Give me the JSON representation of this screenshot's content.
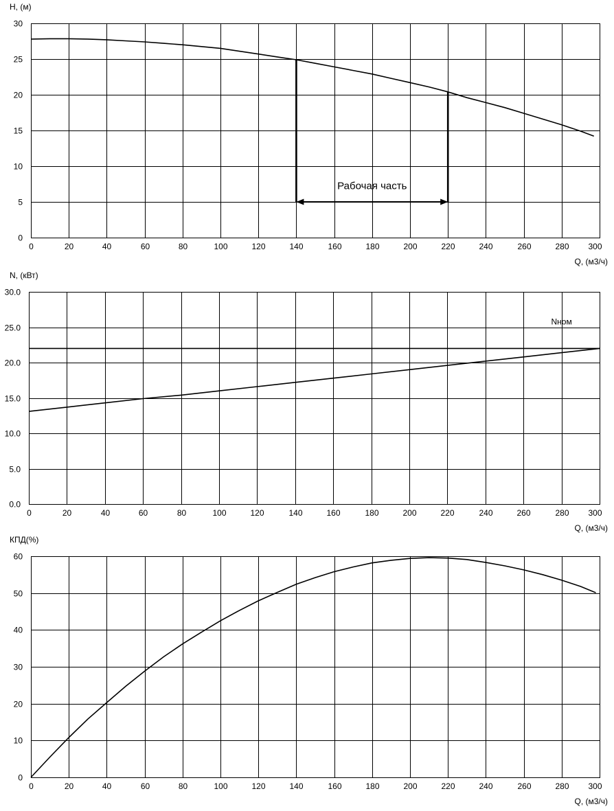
{
  "chart_data": [
    {
      "id": "h",
      "type": "line",
      "ylabel": "H, (м)",
      "xlabel": "Q, (м3/ч)",
      "xlim": [
        0,
        300
      ],
      "ylim": [
        0,
        30
      ],
      "xticks": [
        "0",
        "20",
        "40",
        "60",
        "80",
        "100",
        "120",
        "140",
        "160",
        "180",
        "200",
        "220",
        "240",
        "260",
        "280",
        "300"
      ],
      "yticks": [
        "0",
        "5",
        "10",
        "15",
        "20",
        "25",
        "30"
      ],
      "grid": true,
      "series": [
        {
          "x": [
            0,
            10,
            20,
            30,
            40,
            50,
            60,
            70,
            80,
            90,
            100,
            110,
            120,
            130,
            140,
            150,
            160,
            170,
            180,
            190,
            200,
            210,
            220,
            230,
            240,
            250,
            260,
            270,
            280,
            290,
            297
          ],
          "values": [
            27.8,
            27.85,
            27.85,
            27.8,
            27.7,
            27.55,
            27.4,
            27.2,
            27.0,
            26.75,
            26.5,
            26.1,
            25.7,
            25.3,
            24.9,
            24.4,
            23.9,
            23.4,
            22.9,
            22.3,
            21.7,
            21.1,
            20.4,
            19.6,
            18.9,
            18.2,
            17.4,
            16.6,
            15.8,
            14.9,
            14.2
          ]
        }
      ],
      "annotations": [
        {
          "type": "vline",
          "x": 140,
          "y_from": 5,
          "y_to": 24.9
        },
        {
          "type": "vline",
          "x": 220,
          "y_from": 5,
          "y_to": 20.4
        },
        {
          "type": "double-arrow",
          "x_from": 140,
          "x_to": 220,
          "y": 5
        },
        {
          "type": "text",
          "text": "Рабочая часть",
          "x": 180,
          "y": 6.8
        }
      ]
    },
    {
      "id": "n",
      "type": "line",
      "ylabel": "N, (кВт)",
      "xlabel": "Q, (м3/ч)",
      "xlim": [
        0,
        300
      ],
      "ylim": [
        0,
        30
      ],
      "xticks": [
        "0",
        "20",
        "40",
        "60",
        "80",
        "100",
        "120",
        "140",
        "160",
        "180",
        "200",
        "220",
        "240",
        "260",
        "280",
        "300"
      ],
      "yticks": [
        "0.0",
        "5.0",
        "10.0",
        "15.0",
        "20.0",
        "25.0",
        "30.0"
      ],
      "grid": true,
      "series": [
        {
          "name": "Nном",
          "x": [
            0,
            300
          ],
          "values": [
            22.0,
            22.0
          ]
        },
        {
          "x": [
            0,
            20,
            40,
            60,
            80,
            100,
            120,
            140,
            160,
            180,
            200,
            220,
            240,
            260,
            280,
            300
          ],
          "values": [
            13.1,
            13.7,
            14.3,
            14.9,
            15.4,
            16.0,
            16.6,
            17.2,
            17.8,
            18.4,
            19.0,
            19.6,
            20.2,
            20.8,
            21.4,
            22.0
          ]
        }
      ],
      "annotations": [
        {
          "type": "text",
          "text": "Nном",
          "x": 280,
          "y": 25.4
        }
      ]
    },
    {
      "id": "eff",
      "type": "line",
      "ylabel": "КПД(%)",
      "xlabel": "Q, (м3/ч)",
      "xlim": [
        0,
        300
      ],
      "ylim": [
        0,
        60
      ],
      "xticks": [
        "0",
        "20",
        "40",
        "60",
        "80",
        "100",
        "120",
        "140",
        "160",
        "180",
        "200",
        "220",
        "240",
        "260",
        "280",
        "300"
      ],
      "yticks": [
        "0",
        "10",
        "20",
        "30",
        "40",
        "50",
        "60"
      ],
      "grid": true,
      "series": [
        {
          "x": [
            0,
            10,
            20,
            30,
            40,
            50,
            60,
            70,
            80,
            90,
            100,
            110,
            120,
            130,
            140,
            150,
            160,
            170,
            180,
            190,
            200,
            210,
            220,
            230,
            240,
            250,
            260,
            270,
            280,
            290,
            298
          ],
          "values": [
            0,
            5.5,
            10.8,
            15.8,
            20.3,
            24.7,
            28.8,
            32.7,
            36.2,
            39.4,
            42.5,
            45.3,
            47.9,
            50.2,
            52.4,
            54.2,
            55.8,
            57.1,
            58.2,
            58.9,
            59.4,
            59.6,
            59.5,
            59.1,
            58.3,
            57.4,
            56.3,
            55.0,
            53.5,
            51.8,
            50.1
          ]
        }
      ],
      "annotations": []
    }
  ]
}
